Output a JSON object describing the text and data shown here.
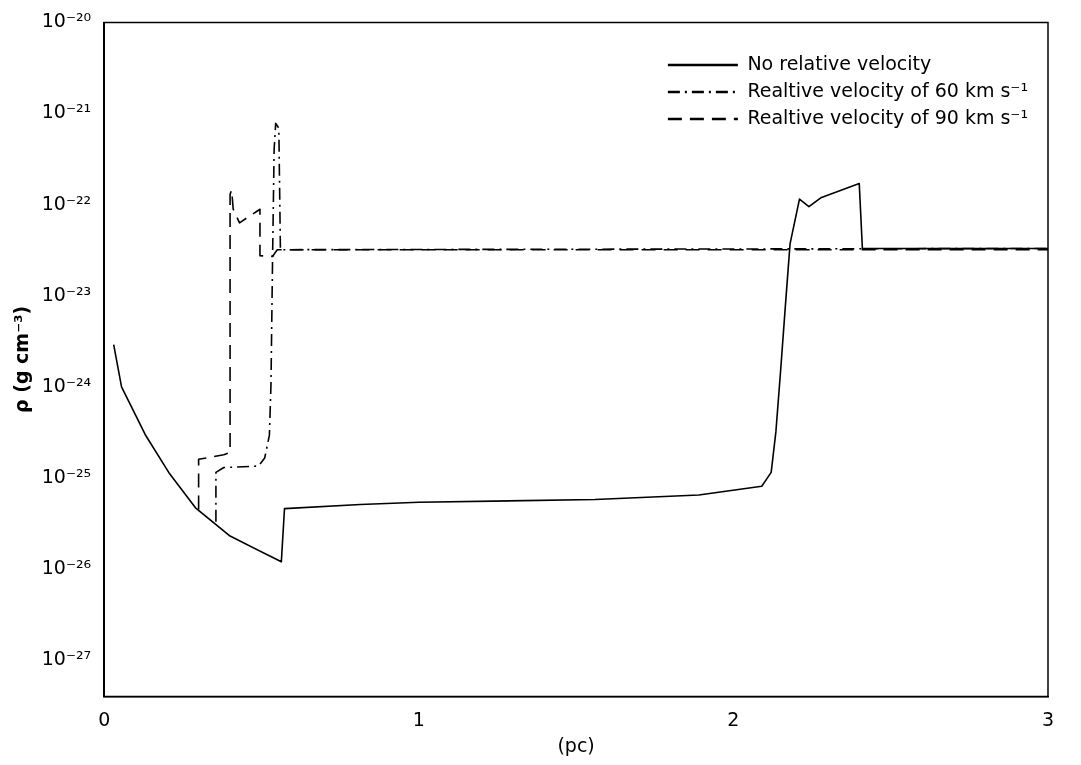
{
  "chart_data": {
    "type": "line",
    "xlabel": "(pc)",
    "ylabel": "ρ (g cm⁻³)",
    "log": "y",
    "xlim": [
      0,
      3
    ],
    "xticks": [
      0,
      1,
      2,
      3
    ],
    "ylim": [
      4e-28,
      1e-20
    ],
    "yticks": [
      {
        "value": 1e-27,
        "label": "10⁻²⁷"
      },
      {
        "value": 1e-26,
        "label": "10⁻²⁶"
      },
      {
        "value": 1e-25,
        "label": "10⁻²⁵"
      },
      {
        "value": 1e-24,
        "label": "10⁻²⁴"
      },
      {
        "value": 1e-23,
        "label": "10⁻²³"
      },
      {
        "value": 1e-22,
        "label": "10⁻²²"
      },
      {
        "value": 1e-21,
        "label": "10⁻²¹"
      },
      {
        "value": 1e-20,
        "label": "10⁻²⁰"
      }
    ],
    "grid": false,
    "legend": "top right",
    "marker": "none",
    "series": [
      {
        "name": "No relative velocity",
        "color": "#000000",
        "line_style": "solid",
        "x": [
          0.03,
          0.055,
          0.13,
          0.205,
          0.29,
          0.4,
          0.563,
          0.573,
          0.814,
          1.0,
          1.56,
          1.89,
          2.09,
          2.12,
          2.135,
          2.15,
          2.165,
          2.18,
          2.21,
          2.24,
          2.28,
          2.4,
          2.41,
          3.0
        ],
        "values": [
          2.9e-24,
          1e-24,
          3e-25,
          1.15e-25,
          4.7e-26,
          2.3e-26,
          1.2e-26,
          4.6e-26,
          5.1e-26,
          5.4e-26,
          5.8e-26,
          6.5e-26,
          8.1e-26,
          1.15e-25,
          3.2e-25,
          1.5e-24,
          7.6e-24,
          3.7e-23,
          1.15e-22,
          9.5e-23,
          1.2e-22,
          1.7e-22,
          3.3e-23,
          3.3e-23
        ]
      },
      {
        "name": "Realtive velocity of 60 km s⁻¹",
        "color": "#000000",
        "line_style": "dashdot",
        "x": [
          0.355,
          0.355,
          0.38,
          0.49,
          0.51,
          0.525,
          0.53,
          0.535,
          0.54,
          0.545,
          0.555,
          0.56,
          3.0
        ],
        "values": [
          3.3e-26,
          1.15e-25,
          1.3e-25,
          1.35e-25,
          1.65e-25,
          2.95e-25,
          1.05e-24,
          2.45e-23,
          4e-22,
          7.8e-22,
          6.9e-22,
          3.2e-23,
          3.3e-23
        ]
      },
      {
        "name": "Realtive velocity of 90 km s⁻¹",
        "color": "#000000",
        "line_style": "dashed",
        "x": [
          0.3,
          0.3,
          0.38,
          0.4,
          0.4,
          0.405,
          0.41,
          0.43,
          0.465,
          0.495,
          0.495,
          0.535,
          0.55,
          3.0
        ],
        "values": [
          4.5e-26,
          1.6e-25,
          1.8e-25,
          1.9e-25,
          1.3e-22,
          1.45e-22,
          8.9e-23,
          6.3e-23,
          7.6e-23,
          8.9e-23,
          2.75e-23,
          2.7e-23,
          3.2e-23,
          3.2e-23
        ]
      }
    ]
  }
}
